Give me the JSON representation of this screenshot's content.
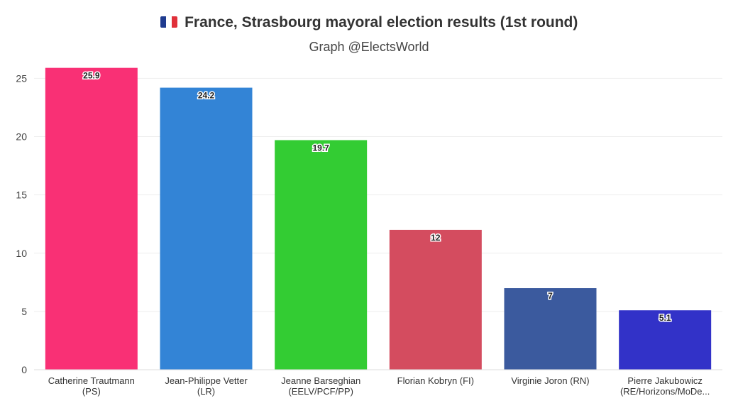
{
  "header": {
    "title": "France, Strasbourg mayoral election results (1st round)",
    "subtitle": "Graph @ElectsWorld"
  },
  "colors": {
    "flag_blue": "#1f3b8f",
    "flag_white": "#ffffff",
    "flag_red": "#e0303a",
    "grid": "#eeeeee"
  },
  "chart_data": {
    "type": "bar",
    "title": "France, Strasbourg mayoral election results (1st round)",
    "xlabel": "",
    "ylabel": "",
    "ylim": [
      0,
      26
    ],
    "yticks": [
      0,
      5,
      10,
      15,
      20,
      25
    ],
    "grid": true,
    "categories": [
      [
        "Catherine Trautmann",
        "(PS)"
      ],
      [
        "Jean-Philippe Vetter",
        "(LR)"
      ],
      [
        "Jeanne Barseghian",
        "(EELV/PCF/PP)"
      ],
      [
        "Florian Kobryn (FI)"
      ],
      [
        "Virginie Joron (RN)"
      ],
      [
        "Pierre Jakubowicz",
        "(RE/Horizons/MoDe..."
      ]
    ],
    "values": [
      25.9,
      24.2,
      19.7,
      12,
      7,
      5.1
    ],
    "colors": [
      "#f93075",
      "#3384d6",
      "#33cc33",
      "#d44c5f",
      "#3b5a9e",
      "#3232c8"
    ]
  }
}
